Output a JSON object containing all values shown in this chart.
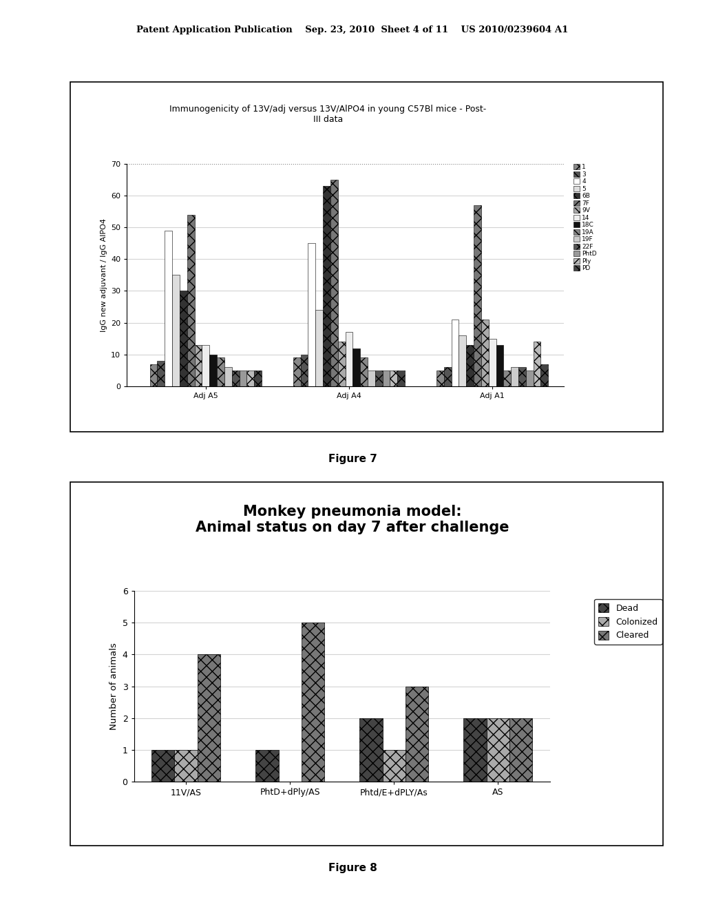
{
  "fig7": {
    "title": "Immunogenicity of 13V/adj versus 13V/AlPO4 in young C57Bl mice - Post-\nIII data",
    "ylabel": "IgG new adjuvant / IgG AlPO4",
    "xlabel_groups": [
      "Adj A5",
      "Adj A4",
      "Adj A1"
    ],
    "group_keys": [
      "AdjA5",
      "AdjA4",
      "AdjA1"
    ],
    "ylim": [
      0,
      70
    ],
    "yticks": [
      0,
      10,
      20,
      30,
      40,
      50,
      60,
      70
    ],
    "legend_labels": [
      "1",
      "3",
      "4",
      "5",
      "6B",
      "7F",
      "9V",
      "14",
      "18C",
      "19A",
      "19F",
      "22F",
      "PhtD",
      "Ply",
      "PD"
    ],
    "series": {
      "1": {
        "AdjA5": 7,
        "AdjA4": 9,
        "AdjA1": 5
      },
      "3": {
        "AdjA5": 8,
        "AdjA4": 10,
        "AdjA1": 6
      },
      "4": {
        "AdjA5": 49,
        "AdjA4": 45,
        "AdjA1": 21
      },
      "5": {
        "AdjA5": 35,
        "AdjA4": 24,
        "AdjA1": 16
      },
      "6B": {
        "AdjA5": 30,
        "AdjA4": 63,
        "AdjA1": 13
      },
      "7F": {
        "AdjA5": 54,
        "AdjA4": 65,
        "AdjA1": 57
      },
      "9V": {
        "AdjA5": 13,
        "AdjA4": 14,
        "AdjA1": 21
      },
      "14": {
        "AdjA5": 13,
        "AdjA4": 17,
        "AdjA1": 15
      },
      "18C": {
        "AdjA5": 10,
        "AdjA4": 12,
        "AdjA1": 13
      },
      "19A": {
        "AdjA5": 9,
        "AdjA4": 9,
        "AdjA1": 5
      },
      "19F": {
        "AdjA5": 6,
        "AdjA4": 5,
        "AdjA1": 6
      },
      "22F": {
        "AdjA5": 5,
        "AdjA4": 5,
        "AdjA1": 6
      },
      "PhtD": {
        "AdjA5": 5,
        "AdjA4": 5,
        "AdjA1": 5
      },
      "Ply": {
        "AdjA5": 5,
        "AdjA4": 5,
        "AdjA1": 14
      },
      "PD": {
        "AdjA5": 5,
        "AdjA4": 5,
        "AdjA1": 7
      }
    },
    "bar_colors": [
      "#888888",
      "#555555",
      "#ffffff",
      "#dddddd",
      "#333333",
      "#777777",
      "#aaaaaa",
      "#eeeeee",
      "#111111",
      "#888888",
      "#cccccc",
      "#555555",
      "#999999",
      "#bbbbbb",
      "#444444"
    ],
    "bar_hatches": [
      "xx",
      "xx",
      "",
      "",
      "xx",
      "xx",
      "xx",
      "",
      "",
      "xx",
      "",
      "xx",
      "",
      "xx",
      "xx"
    ]
  },
  "fig8": {
    "title": "Monkey pneumonia model:\nAnimal status on day 7 after challenge",
    "ylabel": "Number of animals",
    "xlabel_groups": [
      "11V/AS",
      "PhtD+dPly/AS",
      "Phtd/E+dPLY/As",
      "AS"
    ],
    "ylim": [
      0,
      6
    ],
    "yticks": [
      0,
      1,
      2,
      3,
      4,
      5,
      6
    ],
    "legend_labels": [
      "Dead",
      "Colonized",
      "Cleared"
    ],
    "data": {
      "Dead": {
        "11V/AS": 1,
        "PhtD+dPly/AS": 1,
        "Phtd/E+dPLY/As": 2,
        "AS": 2
      },
      "Colonized": {
        "11V/AS": 1,
        "PhtD+dPly/AS": 0,
        "Phtd/E+dPLY/As": 1,
        "AS": 2
      },
      "Cleared": {
        "11V/AS": 4,
        "PhtD+dPly/AS": 5,
        "Phtd/E+dPLY/As": 3,
        "AS": 2
      }
    },
    "bar_colors": [
      "#444444",
      "#aaaaaa",
      "#777777"
    ],
    "bar_hatches": [
      "xx",
      "xx",
      "xx"
    ]
  },
  "header_text": "Patent Application Publication    Sep. 23, 2010  Sheet 4 of 11    US 2010/0239604 A1",
  "figure7_caption": "Figure 7",
  "figure8_caption": "Figure 8",
  "bg_color": "#ffffff",
  "page_bg": "#ffffff"
}
